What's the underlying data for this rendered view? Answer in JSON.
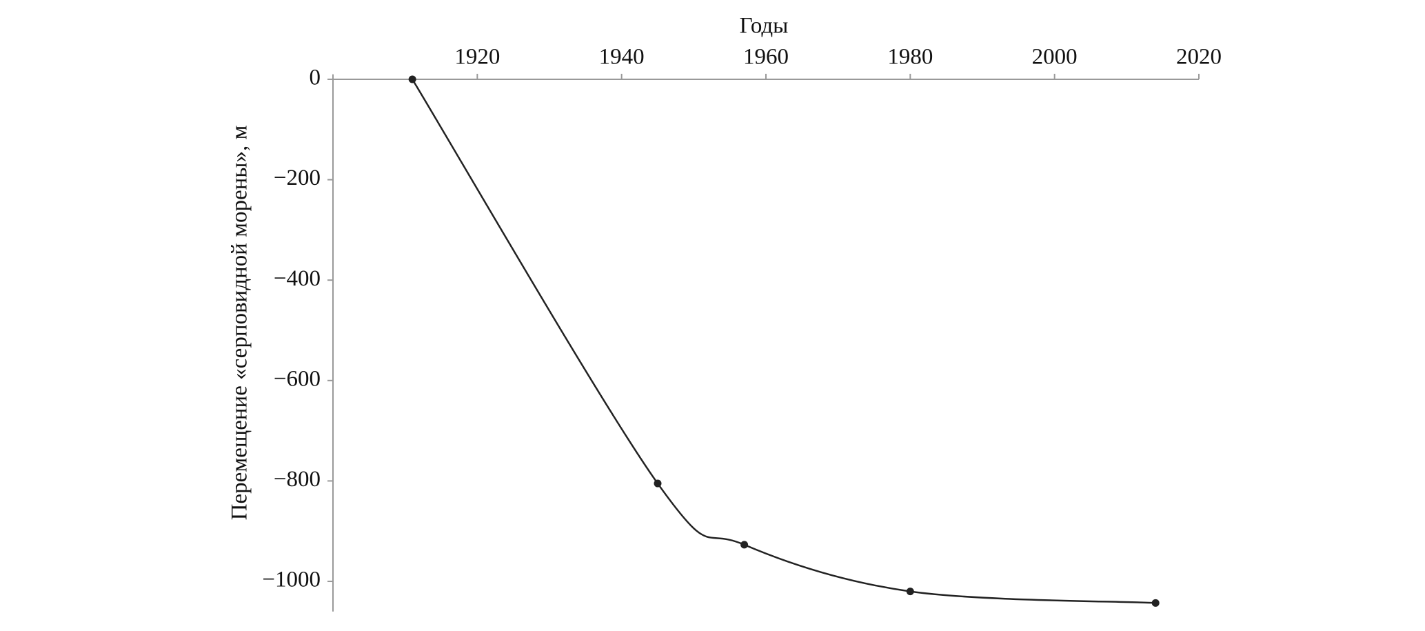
{
  "chart_data": {
    "type": "line",
    "xlabel": "Годы",
    "ylabel": "Перемещение «серповидной морены», м",
    "x": [
      1911,
      1945,
      1957,
      1980,
      2014
    ],
    "series": [
      {
        "name": null,
        "color": "#222222",
        "values": [
          0,
          -805,
          -927,
          -1020,
          -1043
        ]
      }
    ],
    "xlim": [
      1900,
      2020
    ],
    "xticks": [
      1920,
      1940,
      1960,
      1980,
      2000,
      2020
    ],
    "ylim": [
      -1060,
      10
    ],
    "yticks": [
      0,
      {
        "value": -200,
        "label": "−200"
      },
      {
        "value": -400,
        "label": "−400"
      },
      {
        "value": -600,
        "label": "−600"
      },
      {
        "value": -800,
        "label": "−800"
      },
      {
        "value": -1000,
        "label": "−1000"
      }
    ],
    "grid": false
  }
}
